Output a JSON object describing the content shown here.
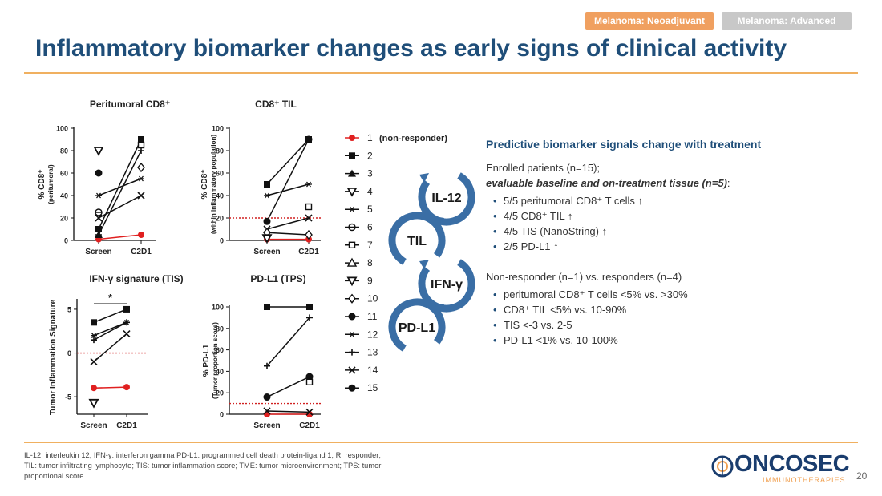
{
  "header": {
    "tabs": [
      {
        "label": "Melanoma: Neoadjuvant",
        "color": "#f0a060"
      },
      {
        "label": "Melanoma: Advanced",
        "color": "#c8c8c8"
      }
    ],
    "title": "Inflammatory biomarker changes as early signs of clinical activity"
  },
  "legend": {
    "non_responder_note": "(non-responder)",
    "patients": [
      "1",
      "2",
      "3",
      "4",
      "5",
      "6",
      "7",
      "8",
      "9",
      "10",
      "11",
      "12",
      "13",
      "14",
      "15"
    ]
  },
  "cycle": {
    "steps": [
      "IL-12",
      "TIL",
      "IFN-γ",
      "PD-L1"
    ],
    "color": "#3a6ea5"
  },
  "summary": {
    "heading": "Predictive biomarker signals change with treatment",
    "enrolled": "Enrolled patients (n=15);",
    "evaluable": "evaluable baseline and on-treatment tissue (n=5)",
    "evaluable_suffix": ":",
    "bullets_a": [
      "5/5 peritumoral CD8⁺ T cells ↑",
      "4/5 CD8⁺ TIL ↑",
      "4/5 TIS (NanoString) ↑",
      "2/5 PD-L1 ↑"
    ],
    "nr_heading": "Non-responder (n=1) vs. responders (n=4)",
    "bullets_b": [
      "peritumoral CD8⁺ T cells <5% vs. >30%",
      "CD8⁺ TIL <5% vs. 10-90%",
      "TIS <-3 vs. 2-5",
      "PD-L1 <1% vs. 10-100%"
    ]
  },
  "footer": {
    "footnote": "IL-12: interleukin 12; IFN-γ: interferon gamma PD-L1: programmed cell death protein-ligand 1; R: responder; TIL: tumor infiltrating lymphocyte; TIS: tumor inflammation score; TME: tumor microenvironment; TPS: tumor proportional score",
    "logo_text": "ONCOSEC",
    "logo_sub": "IMMUNOTHERAPIES",
    "page_number": "20"
  },
  "colors": {
    "title": "#1f4e79",
    "accent": "#f0b060",
    "non_responder": "#e02020",
    "series": "#111111"
  },
  "chart_data": [
    {
      "id": "peritumoral",
      "type": "line",
      "title": "Peritumoral CD8⁺",
      "ylabel": [
        "% CD8⁺",
        "(peritumoral)"
      ],
      "categories": [
        "Screen",
        "C2D1"
      ],
      "ylim": [
        0,
        100
      ],
      "yticks": [
        0,
        20,
        40,
        60,
        80,
        100
      ],
      "series": [
        {
          "name": "1",
          "marker": "circle",
          "non_responder": true,
          "values": [
            1,
            5
          ]
        },
        {
          "name": "2",
          "marker": "square",
          "values": [
            10,
            90
          ]
        },
        {
          "name": "13",
          "marker": "plus",
          "values": [
            5,
            80
          ]
        },
        {
          "name": "12",
          "marker": "star",
          "values": [
            40,
            55
          ]
        },
        {
          "name": "14",
          "marker": "x",
          "values": [
            20,
            40
          ]
        },
        {
          "name": "9",
          "marker": "triangle-down",
          "values": [
            80,
            null
          ]
        },
        {
          "name": "15",
          "marker": "circle-dot",
          "values": [
            60,
            null
          ]
        },
        {
          "name": "6",
          "marker": "circle-line",
          "values": [
            25,
            null
          ]
        },
        {
          "name": "10",
          "marker": "diamond-open",
          "values": [
            null,
            65
          ]
        },
        {
          "name": "7",
          "marker": "square-open",
          "values": [
            null,
            85
          ]
        },
        {
          "name": "3",
          "marker": "triangle",
          "values": [
            5,
            null
          ]
        }
      ]
    },
    {
      "id": "til",
      "type": "line",
      "title": "CD8⁺ TIL",
      "ylabel": [
        "% CD8⁺",
        "(within inflammatory population)"
      ],
      "categories": [
        "Screen",
        "C2D1"
      ],
      "ylim": [
        0,
        100
      ],
      "yticks": [
        0,
        20,
        40,
        60,
        80,
        100
      ],
      "threshold": 20,
      "series": [
        {
          "name": "1",
          "marker": "circle",
          "non_responder": true,
          "values": [
            1,
            1
          ]
        },
        {
          "name": "2",
          "marker": "square",
          "values": [
            50,
            90
          ]
        },
        {
          "name": "13",
          "marker": "star",
          "values": [
            40,
            50
          ]
        },
        {
          "name": "15",
          "marker": "circle-dot",
          "values": [
            17,
            90
          ]
        },
        {
          "name": "14",
          "marker": "x",
          "values": [
            10,
            20
          ]
        },
        {
          "name": "7",
          "marker": "square-open",
          "values": [
            null,
            30
          ]
        },
        {
          "name": "10",
          "marker": "diamond-open",
          "values": [
            7,
            5
          ]
        },
        {
          "name": "4",
          "marker": "triangle-down",
          "values": [
            2,
            null
          ]
        }
      ]
    },
    {
      "id": "tis",
      "type": "line",
      "title": "IFN-γ signature (TIS)",
      "ylabel": [
        "Tumor Inflammation Signature"
      ],
      "categories": [
        "Screen",
        "C2D1"
      ],
      "ylim": [
        -7,
        6
      ],
      "yticks": [
        -5,
        0,
        5
      ],
      "threshold": 0,
      "significance": "*",
      "series": [
        {
          "name": "1",
          "marker": "circle",
          "non_responder": true,
          "values": [
            -4,
            -3.9
          ]
        },
        {
          "name": "2",
          "marker": "square",
          "values": [
            3.5,
            5
          ]
        },
        {
          "name": "12",
          "marker": "star",
          "values": [
            2,
            3.5
          ]
        },
        {
          "name": "13",
          "marker": "plus",
          "values": [
            1.5,
            3.5
          ]
        },
        {
          "name": "14",
          "marker": "x",
          "values": [
            -1,
            2.2
          ]
        },
        {
          "name": "4",
          "marker": "triangle-down",
          "values": [
            -5.7,
            null
          ]
        }
      ]
    },
    {
      "id": "pdl1",
      "type": "line",
      "title": "PD-L1 (TPS)",
      "ylabel": [
        "% PD-L1",
        "(Tumor proportion score)"
      ],
      "categories": [
        "Screen",
        "C2D1"
      ],
      "ylim": [
        0,
        100
      ],
      "yticks": [
        0,
        20,
        40,
        60,
        80,
        100
      ],
      "threshold": 10,
      "series": [
        {
          "name": "1",
          "marker": "circle",
          "non_responder": true,
          "values": [
            0,
            0
          ]
        },
        {
          "name": "2",
          "marker": "square",
          "values": [
            100,
            100
          ]
        },
        {
          "name": "13",
          "marker": "plus",
          "values": [
            45,
            90
          ]
        },
        {
          "name": "15",
          "marker": "circle-dot",
          "values": [
            16,
            35
          ]
        },
        {
          "name": "14",
          "marker": "x",
          "values": [
            3,
            2
          ]
        },
        {
          "name": "7",
          "marker": "square-open",
          "values": [
            null,
            30
          ]
        }
      ]
    }
  ]
}
